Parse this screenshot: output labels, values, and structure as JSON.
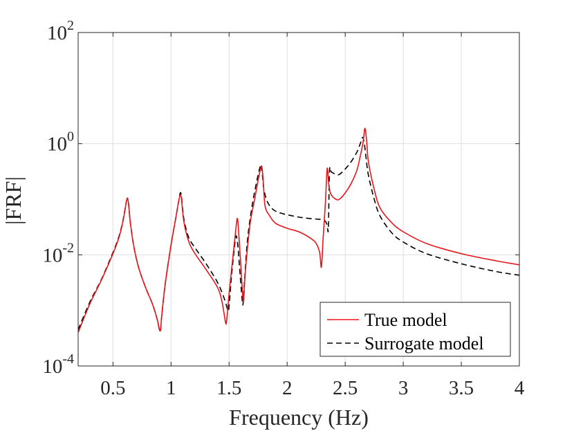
{
  "chart_data": {
    "type": "line",
    "title": "",
    "xlabel": "Frequency (Hz)",
    "ylabel": "|FRF|",
    "xlim": [
      0.2,
      4
    ],
    "ylim_log10": [
      -4,
      2
    ],
    "yscale": "log",
    "grid": true,
    "legend_position": "bottom-right",
    "x_ticks": [
      0.5,
      1,
      1.5,
      2,
      2.5,
      3,
      3.5,
      4
    ],
    "x_tick_labels": [
      "0.5",
      "1",
      "1.5",
      "2",
      "2.5",
      "3",
      "3.5",
      "4"
    ],
    "y_tick_bases": [
      "10",
      "10",
      "10",
      "10"
    ],
    "y_tick_exponents": [
      "-4",
      "-2",
      "0",
      "2"
    ],
    "series": [
      {
        "name": "True model",
        "color": "#e8141c",
        "style": "solid",
        "x": [
          0.2,
          0.3,
          0.4,
          0.5,
          0.55,
          0.58,
          0.6,
          0.615,
          0.625,
          0.635,
          0.65,
          0.68,
          0.72,
          0.78,
          0.84,
          0.88,
          0.9,
          0.91,
          0.92,
          0.95,
          1.0,
          1.04,
          1.065,
          1.08,
          1.09,
          1.11,
          1.15,
          1.2,
          1.3,
          1.4,
          1.44,
          1.47,
          1.48,
          1.5,
          1.53,
          1.555,
          1.57,
          1.58,
          1.6,
          1.615,
          1.625,
          1.64,
          1.68,
          1.72,
          1.75,
          1.775,
          1.785,
          1.795,
          1.81,
          1.85,
          1.9,
          2.0,
          2.1,
          2.2,
          2.25,
          2.28,
          2.295,
          2.31,
          2.33,
          2.345,
          2.36,
          2.38,
          2.42,
          2.45,
          2.5,
          2.55,
          2.6,
          2.63,
          2.655,
          2.67,
          2.685,
          2.7,
          2.75,
          2.8,
          2.9,
          3.0,
          3.2,
          3.5,
          3.8,
          4.0
        ],
        "y": [
          0.0004,
          0.0013,
          0.0035,
          0.0105,
          0.02,
          0.035,
          0.058,
          0.09,
          0.105,
          0.08,
          0.037,
          0.014,
          0.006,
          0.0026,
          0.0013,
          0.0007,
          0.00045,
          0.00045,
          0.0008,
          0.003,
          0.015,
          0.045,
          0.09,
          0.12,
          0.1,
          0.04,
          0.018,
          0.011,
          0.0055,
          0.0026,
          0.0014,
          0.0006,
          0.0007,
          0.002,
          0.008,
          0.025,
          0.045,
          0.03,
          0.007,
          0.0022,
          0.0015,
          0.005,
          0.035,
          0.1,
          0.22,
          0.38,
          0.35,
          0.2,
          0.075,
          0.05,
          0.037,
          0.03,
          0.026,
          0.02,
          0.016,
          0.011,
          0.006,
          0.02,
          0.09,
          0.36,
          0.17,
          0.12,
          0.1,
          0.1,
          0.13,
          0.19,
          0.33,
          0.6,
          1.1,
          1.9,
          1.1,
          0.47,
          0.15,
          0.07,
          0.038,
          0.026,
          0.016,
          0.0105,
          0.0078,
          0.0066
        ]
      },
      {
        "name": "Surrogate model",
        "color": "#000000",
        "style": "dashed",
        "x": [
          0.2,
          0.3,
          0.4,
          0.5,
          0.55,
          0.58,
          0.6,
          0.615,
          0.625,
          0.635,
          0.65,
          0.68,
          0.72,
          0.78,
          0.84,
          0.88,
          0.9,
          0.91,
          0.92,
          0.95,
          1.0,
          1.04,
          1.065,
          1.08,
          1.09,
          1.11,
          1.15,
          1.2,
          1.3,
          1.4,
          1.46,
          1.49,
          1.5,
          1.52,
          1.545,
          1.56,
          1.575,
          1.59,
          1.61,
          1.62,
          1.635,
          1.66,
          1.7,
          1.74,
          1.765,
          1.775,
          1.785,
          1.8,
          1.83,
          1.88,
          1.95,
          2.05,
          2.15,
          2.25,
          2.3,
          2.33,
          2.345,
          2.355,
          2.365,
          2.38,
          2.42,
          2.45,
          2.5,
          2.55,
          2.6,
          2.63,
          2.65,
          2.665,
          2.68,
          2.7,
          2.75,
          2.8,
          2.9,
          3.0,
          3.2,
          3.5,
          3.8,
          4.0
        ],
        "y": [
          0.00045,
          0.0014,
          0.0036,
          0.011,
          0.021,
          0.036,
          0.06,
          0.09,
          0.1,
          0.08,
          0.037,
          0.014,
          0.006,
          0.0026,
          0.0013,
          0.0007,
          0.00045,
          0.00045,
          0.0008,
          0.003,
          0.015,
          0.045,
          0.09,
          0.13,
          0.11,
          0.045,
          0.021,
          0.014,
          0.007,
          0.0032,
          0.0016,
          0.001,
          0.0012,
          0.004,
          0.013,
          0.022,
          0.015,
          0.006,
          0.0018,
          0.0013,
          0.004,
          0.02,
          0.08,
          0.22,
          0.37,
          0.42,
          0.3,
          0.15,
          0.09,
          0.065,
          0.056,
          0.05,
          0.046,
          0.044,
          0.043,
          0.04,
          0.034,
          0.03,
          0.32,
          0.31,
          0.28,
          0.28,
          0.35,
          0.47,
          0.7,
          1.0,
          1.3,
          1.0,
          0.55,
          0.27,
          0.1,
          0.05,
          0.025,
          0.017,
          0.0105,
          0.0069,
          0.005,
          0.0043
        ]
      }
    ]
  }
}
